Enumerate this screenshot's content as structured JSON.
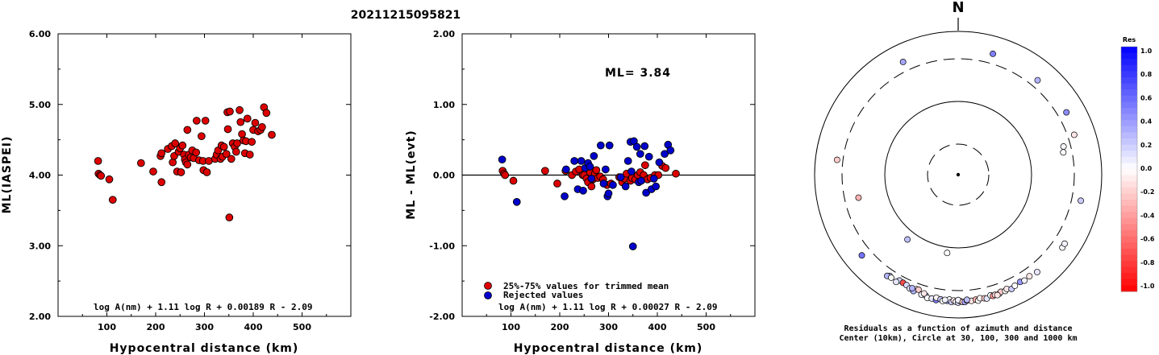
{
  "title": "20211215095821",
  "chart_data": [
    {
      "type": "scatter",
      "xlabel": "Hypocentral distance (km)",
      "ylabel": "ML(IASPEI)",
      "xlim": [
        0,
        600
      ],
      "ylim": [
        2.0,
        6.0
      ],
      "x_ticks": [
        "100",
        "200",
        "300",
        "400",
        "500"
      ],
      "y_ticks": [
        "2.00",
        "3.00",
        "4.00",
        "5.00",
        "6.00"
      ],
      "formula": "log A(nm) + 1.11 log R + 0.00189 R - 2.09",
      "series": [
        {
          "color": "#dd0000",
          "points": [
            [
              82,
              4.2
            ],
            [
              83,
              4.02
            ],
            [
              86,
              4.0
            ],
            [
              88,
              3.99
            ],
            [
              105,
              3.94
            ],
            [
              112,
              3.65
            ],
            [
              170,
              4.17
            ],
            [
              195,
              4.05
            ],
            [
              210,
              4.27
            ],
            [
              212,
              4.31
            ],
            [
              212,
              3.9
            ],
            [
              225,
              4.37
            ],
            [
              233,
              4.41
            ],
            [
              235,
              4.18
            ],
            [
              238,
              4.27
            ],
            [
              240,
              4.45
            ],
            [
              244,
              4.05
            ],
            [
              247,
              4.33
            ],
            [
              250,
              4.38
            ],
            [
              252,
              4.04
            ],
            [
              255,
              4.42
            ],
            [
              258,
              4.29
            ],
            [
              260,
              4.22
            ],
            [
              262,
              4.18
            ],
            [
              265,
              4.64
            ],
            [
              265,
              4.15
            ],
            [
              268,
              4.29
            ],
            [
              272,
              4.25
            ],
            [
              275,
              4.35
            ],
            [
              278,
              4.24
            ],
            [
              283,
              4.32
            ],
            [
              284,
              4.77
            ],
            [
              289,
              4.21
            ],
            [
              294,
              4.55
            ],
            [
              297,
              4.2
            ],
            [
              298,
              4.07
            ],
            [
              302,
              4.77
            ],
            [
              305,
              4.04
            ],
            [
              309,
              4.2
            ],
            [
              322,
              4.23
            ],
            [
              325,
              4.29
            ],
            [
              328,
              4.35
            ],
            [
              333,
              4.23
            ],
            [
              335,
              4.42
            ],
            [
              337,
              4.26
            ],
            [
              340,
              4.4
            ],
            [
              345,
              4.3
            ],
            [
              347,
              4.89
            ],
            [
              348,
              4.65
            ],
            [
              351,
              3.4
            ],
            [
              352,
              4.9
            ],
            [
              355,
              4.23
            ],
            [
              358,
              4.45
            ],
            [
              362,
              4.4
            ],
            [
              365,
              4.33
            ],
            [
              367,
              4.45
            ],
            [
              372,
              4.92
            ],
            [
              374,
              4.75
            ],
            [
              377,
              4.58
            ],
            [
              380,
              4.49
            ],
            [
              383,
              4.31
            ],
            [
              385,
              4.48
            ],
            [
              388,
              4.8
            ],
            [
              393,
              4.29
            ],
            [
              397,
              4.47
            ],
            [
              400,
              4.64
            ],
            [
              404,
              4.74
            ],
            [
              410,
              4.62
            ],
            [
              415,
              4.64
            ],
            [
              418,
              4.68
            ],
            [
              422,
              4.96
            ],
            [
              427,
              4.88
            ],
            [
              438,
              4.57
            ]
          ]
        }
      ]
    },
    {
      "type": "scatter",
      "xlabel": "Hypocentral distance (km)",
      "ylabel": "ML - ML(evt)",
      "xlim": [
        0,
        600
      ],
      "ylim": [
        -2.0,
        2.0
      ],
      "x_ticks": [
        "100",
        "200",
        "300",
        "400",
        "500"
      ],
      "y_ticks": [
        "-2.00",
        "-1.00",
        "0.00",
        "1.00",
        "2.00"
      ],
      "reference_line": 0.0,
      "annotation": "ML= 3.84",
      "formula": "log A(nm) + 1.11 log R + 0.00027 R - 2.09",
      "legend": [
        {
          "label": "25%-75% values for trimmed mean",
          "color": "#dd0000"
        },
        {
          "label": "Rejected values",
          "color": "#0000cc"
        }
      ],
      "series": [
        {
          "name": "25%-75% values for trimmed mean",
          "color": "#dd0000",
          "points": [
            [
              83,
              0.06
            ],
            [
              86,
              0.02
            ],
            [
              88,
              0.0
            ],
            [
              105,
              -0.08
            ],
            [
              170,
              0.06
            ],
            [
              195,
              -0.12
            ],
            [
              212,
              0.06
            ],
            [
              225,
              0.0
            ],
            [
              233,
              0.05
            ],
            [
              240,
              0.08
            ],
            [
              247,
              0.0
            ],
            [
              250,
              0.0
            ],
            [
              255,
              -0.05
            ],
            [
              258,
              -0.1
            ],
            [
              262,
              0.04
            ],
            [
              265,
              -0.16
            ],
            [
              268,
              -0.06
            ],
            [
              272,
              0.02
            ],
            [
              275,
              0.07
            ],
            [
              278,
              -0.04
            ],
            [
              283,
              -0.02
            ],
            [
              289,
              -0.06
            ],
            [
              297,
              -0.14
            ],
            [
              305,
              -0.12
            ],
            [
              322,
              -0.03
            ],
            [
              328,
              -0.1
            ],
            [
              333,
              -0.05
            ],
            [
              337,
              0.02
            ],
            [
              345,
              -0.08
            ],
            [
              348,
              -0.04
            ],
            [
              355,
              -0.06
            ],
            [
              360,
              0.0
            ],
            [
              365,
              0.04
            ],
            [
              372,
              0.0
            ],
            [
              375,
              0.14
            ],
            [
              380,
              -0.06
            ],
            [
              386,
              -0.04
            ],
            [
              395,
              0.0
            ],
            [
              402,
              0.0
            ],
            [
              410,
              0.13
            ],
            [
              417,
              0.1
            ],
            [
              438,
              0.02
            ]
          ]
        },
        {
          "name": "Rejected values",
          "color": "#0000cc",
          "points": [
            [
              82,
              0.22
            ],
            [
              112,
              -0.38
            ],
            [
              210,
              -0.3
            ],
            [
              213,
              0.08
            ],
            [
              230,
              0.2
            ],
            [
              237,
              -0.2
            ],
            [
              244,
              0.2
            ],
            [
              248,
              -0.22
            ],
            [
              252,
              0.1
            ],
            [
              258,
              0.17
            ],
            [
              262,
              0.12
            ],
            [
              265,
              -0.05
            ],
            [
              270,
              0.27
            ],
            [
              284,
              0.42
            ],
            [
              290,
              -0.12
            ],
            [
              294,
              0.08
            ],
            [
              298,
              -0.3
            ],
            [
              300,
              -0.26
            ],
            [
              302,
              0.42
            ],
            [
              309,
              -0.14
            ],
            [
              325,
              -0.03
            ],
            [
              335,
              -0.16
            ],
            [
              340,
              0.2
            ],
            [
              345,
              0.47
            ],
            [
              347,
              0.05
            ],
            [
              350,
              -1.01
            ],
            [
              352,
              0.48
            ],
            [
              358,
              0.4
            ],
            [
              362,
              -0.1
            ],
            [
              365,
              0.3
            ],
            [
              367,
              -0.08
            ],
            [
              374,
              0.41
            ],
            [
              377,
              -0.25
            ],
            [
              383,
              0.26
            ],
            [
              388,
              -0.2
            ],
            [
              393,
              -0.05
            ],
            [
              397,
              -0.16
            ],
            [
              404,
              0.18
            ],
            [
              415,
              0.3
            ],
            [
              422,
              0.43
            ],
            [
              427,
              0.35
            ]
          ]
        }
      ]
    },
    {
      "type": "scatter",
      "subtype": "polar",
      "north_label": "N",
      "caption_line1": "Residuals as a function of azimuth and distance",
      "caption_line2": "Center (10km), Circle at 30, 100, 300 and 1000 km",
      "colorbar_title": "Res",
      "colorbar_ticks": [
        "1.0",
        "0.8",
        "0.6",
        "0.4",
        "0.2",
        "0.0",
        "-0.2",
        "-0.4",
        "-0.6",
        "-0.8",
        "-1.0"
      ],
      "circles_km": [
        30,
        100,
        300,
        1000
      ],
      "stations": [
        {
          "az": -26,
          "dist_km": 456,
          "res": 0.35
        },
        {
          "az": 16,
          "dist_km": 462,
          "res": 0.5
        },
        {
          "az": 40,
          "dist_km": 415,
          "res": 0.3
        },
        {
          "az": 60,
          "dist_km": 442,
          "res": 0.45
        },
        {
          "az": 71,
          "dist_km": 400,
          "res": -0.1
        },
        {
          "az": 75,
          "dist_km": 250,
          "res": 0.03
        },
        {
          "az": 78,
          "dist_km": 240,
          "res": 0.0
        },
        {
          "az": -83,
          "dist_km": 388,
          "res": -0.2
        },
        {
          "az": 102,
          "dist_km": 450,
          "res": 0.2
        },
        {
          "az": -103,
          "dist_km": 210,
          "res": -0.3
        },
        {
          "az": -142,
          "dist_km": 126,
          "res": 0.25
        },
        {
          "az": -172,
          "dist_km": 116,
          "res": 0.0
        },
        {
          "az": 125,
          "dist_km": 488,
          "res": 0.02
        },
        {
          "az": 123,
          "dist_km": 482,
          "res": 0.05
        },
        {
          "az": -130,
          "dist_km": 458,
          "res": 0.55
        },
        {
          "az": 145,
          "dist_km": 428,
          "res": -0.1
        },
        {
          "az": 141,
          "dist_km": 452,
          "res": 0.1
        },
        {
          "az": -146,
          "dist_km": 395,
          "res": 0.2
        },
        {
          "az": -145,
          "dist_km": 420,
          "res": 0.3
        },
        {
          "az": -160,
          "dist_km": 390,
          "res": 0.0
        },
        {
          "az": -151,
          "dist_km": 375,
          "res": 0.15
        },
        {
          "az": -147,
          "dist_km": 405,
          "res": 0.0
        },
        {
          "az": -150,
          "dist_km": 425,
          "res": 0.1
        },
        {
          "az": -153,
          "dist_km": 380,
          "res": -0.7
        },
        {
          "az": -155,
          "dist_km": 390,
          "res": 0.15
        },
        {
          "az": -157,
          "dist_km": 420,
          "res": 0.1
        },
        {
          "az": -159,
          "dist_km": 440,
          "res": 0.3
        },
        {
          "az": -161,
          "dist_km": 385,
          "res": -0.2
        },
        {
          "az": -163,
          "dist_km": 455,
          "res": 0.05
        },
        {
          "az": -165,
          "dist_km": 450,
          "res": 0.25
        },
        {
          "az": -166,
          "dist_km": 490,
          "res": 0.0
        },
        {
          "az": -168,
          "dist_km": 480,
          "res": 0.1
        },
        {
          "az": -170,
          "dist_km": 495,
          "res": 0.5
        },
        {
          "az": -170,
          "dist_km": 445,
          "res": -0.05
        },
        {
          "az": -172,
          "dist_km": 465,
          "res": 0.2
        },
        {
          "az": -173,
          "dist_km": 495,
          "res": 0.0
        },
        {
          "az": -175,
          "dist_km": 480,
          "res": 0.4
        },
        {
          "az": -176,
          "dist_km": 450,
          "res": 0.0
        },
        {
          "az": -177,
          "dist_km": 500,
          "res": 0.2
        },
        {
          "az": -178,
          "dist_km": 465,
          "res": -0.1
        },
        {
          "az": -179,
          "dist_km": 490,
          "res": 0.0
        },
        {
          "az": 180,
          "dist_km": 510,
          "res": 0.15
        },
        {
          "az": 179,
          "dist_km": 480,
          "res": -0.15
        },
        {
          "az": -180,
          "dist_km": 455,
          "res": 0.05
        },
        {
          "az": 178,
          "dist_km": 495,
          "res": -0.2
        },
        {
          "az": 177,
          "dist_km": 500,
          "res": 0.35
        },
        {
          "az": 176,
          "dist_km": 470,
          "res": 0.0
        },
        {
          "az": 174,
          "dist_km": 485,
          "res": -0.1
        },
        {
          "az": 172,
          "dist_km": 470,
          "res": -0.3
        },
        {
          "az": 171,
          "dist_km": 500,
          "res": 0.0
        },
        {
          "az": 170,
          "dist_km": 455,
          "res": -0.05
        },
        {
          "az": 168,
          "dist_km": 475,
          "res": -0.2
        },
        {
          "az": 167,
          "dist_km": 490,
          "res": 0.1
        },
        {
          "az": 165,
          "dist_km": 445,
          "res": 0.0
        },
        {
          "az": 164,
          "dist_km": 470,
          "res": -0.4
        },
        {
          "az": 163,
          "dist_km": 460,
          "res": -0.15
        },
        {
          "az": 161,
          "dist_km": 465,
          "res": 0.05
        },
        {
          "az": 160,
          "dist_km": 440,
          "res": -0.2
        },
        {
          "az": 158,
          "dist_km": 455,
          "res": 0.0
        },
        {
          "az": 157,
          "dist_km": 430,
          "res": -0.1
        },
        {
          "az": 155,
          "dist_km": 470,
          "res": 0.2
        },
        {
          "az": 153,
          "dist_km": 440,
          "res": 0.0
        },
        {
          "az": 150,
          "dist_km": 425,
          "res": 0.4
        },
        {
          "az": 148,
          "dist_km": 445,
          "res": 0.05
        },
        {
          "az": 162,
          "dist_km": 480,
          "res": -0.1
        },
        {
          "az": -158,
          "dist_km": 400,
          "res": 0.3
        },
        {
          "az": -164,
          "dist_km": 420,
          "res": -0.1
        },
        {
          "az": 176,
          "dist_km": 455,
          "res": 0.25
        },
        {
          "az": -174,
          "dist_km": 465,
          "res": 0.05
        }
      ]
    }
  ]
}
